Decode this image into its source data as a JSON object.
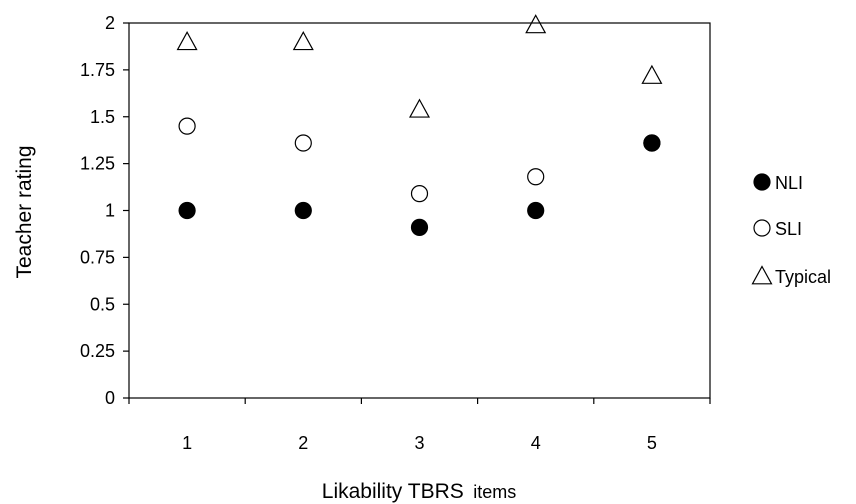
{
  "chart_data": {
    "type": "scatter",
    "x": [
      1,
      2,
      3,
      4,
      5
    ],
    "series": [
      {
        "name": "NLI",
        "marker": "filled-circle",
        "values": [
          1.0,
          1.0,
          0.91,
          1.0,
          1.36
        ]
      },
      {
        "name": "SLI",
        "marker": "open-circle",
        "values": [
          1.45,
          1.36,
          1.09,
          1.18,
          1.36
        ]
      },
      {
        "name": "Typical",
        "marker": "open-triangle",
        "values": [
          1.9,
          1.9,
          1.54,
          1.99,
          1.72
        ]
      }
    ],
    "xlabel_main": "Likability TBRS",
    "xlabel_sub": "items",
    "ylabel": "Teacher rating",
    "ylim": [
      0,
      2
    ],
    "yticks": [
      0,
      0.25,
      0.5,
      0.75,
      1,
      1.25,
      1.5,
      1.75,
      2
    ],
    "ytick_labels": [
      "0",
      "0.25",
      "0.5",
      "0.75",
      "1",
      "1.25",
      "1.5",
      "1.75",
      "2"
    ],
    "xtick_labels": [
      "1",
      "2",
      "3",
      "4",
      "5"
    ],
    "legend_position": "right",
    "grid": false
  }
}
